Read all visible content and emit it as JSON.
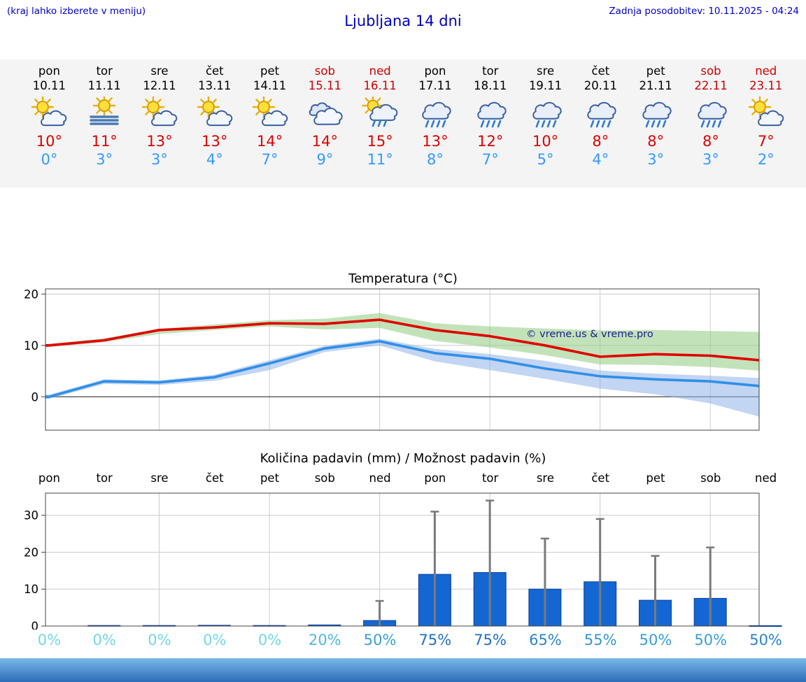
{
  "header": {
    "left_note": "(kraj lahko izberete v meniju)",
    "title": "Ljubljana 14 dni",
    "last_update": "Zadnja posodobitev: 10.11.2025 - 04:24"
  },
  "watermark": "© vreme.us & vreme.pro",
  "colors": {
    "header_blue": "#0000cc",
    "title_blue": "#0000bb",
    "weekend": "#cc0000",
    "weekday": "#000000",
    "temp_high": "#dd0000",
    "temp_low": "#3399ff",
    "strip_bg": "#f4f4f4",
    "grid": "#cccccc",
    "axis": "#444444",
    "bar_fill": "#1467d2",
    "bar_edge": "#0a3f9e",
    "whisker": "#7a7a7a",
    "watermark": "#1a1a8c",
    "footer_top": "#7ab8e8",
    "footer_bottom": "#2b6cb8"
  },
  "forecast": {
    "days": [
      {
        "name": "pon",
        "date": "10.11",
        "weekend": false,
        "icon": "partly-sunny",
        "high": "10°",
        "low": "0°"
      },
      {
        "name": "tor",
        "date": "11.11",
        "weekend": false,
        "icon": "fog",
        "high": "11°",
        "low": "3°"
      },
      {
        "name": "sre",
        "date": "12.11",
        "weekend": false,
        "icon": "partly-sunny",
        "high": "13°",
        "low": "3°"
      },
      {
        "name": "čet",
        "date": "13.11",
        "weekend": false,
        "icon": "partly-sunny",
        "high": "13°",
        "low": "4°"
      },
      {
        "name": "pet",
        "date": "14.11",
        "weekend": false,
        "icon": "partly-sunny",
        "high": "14°",
        "low": "7°"
      },
      {
        "name": "sob",
        "date": "15.11",
        "weekend": true,
        "icon": "cloudy",
        "high": "14°",
        "low": "9°"
      },
      {
        "name": "ned",
        "date": "16.11",
        "weekend": true,
        "icon": "rain-sun",
        "high": "15°",
        "low": "11°"
      },
      {
        "name": "pon",
        "date": "17.11",
        "weekend": false,
        "icon": "rain",
        "high": "13°",
        "low": "8°"
      },
      {
        "name": "tor",
        "date": "18.11",
        "weekend": false,
        "icon": "rain",
        "high": "12°",
        "low": "7°"
      },
      {
        "name": "sre",
        "date": "19.11",
        "weekend": false,
        "icon": "rain",
        "high": "10°",
        "low": "5°"
      },
      {
        "name": "čet",
        "date": "20.11",
        "weekend": false,
        "icon": "rain",
        "high": "8°",
        "low": "4°"
      },
      {
        "name": "pet",
        "date": "21.11",
        "weekend": false,
        "icon": "rain",
        "high": "8°",
        "low": "3°"
      },
      {
        "name": "sob",
        "date": "22.11",
        "weekend": true,
        "icon": "rain",
        "high": "8°",
        "low": "3°"
      },
      {
        "name": "ned",
        "date": "23.11",
        "weekend": true,
        "icon": "partly-sunny",
        "high": "7°",
        "low": "2°"
      }
    ]
  },
  "chart_data": [
    {
      "type": "line",
      "title": "Temperatura (°C)",
      "x_labels": [
        "10.11",
        "11.11",
        "12.11",
        "13.11",
        "14.11",
        "15.11",
        "16.11",
        "17.11",
        "18.11",
        "19.11",
        "20.11",
        "21.11",
        "22.11",
        "23.11"
      ],
      "series": [
        {
          "name": "max-temperature",
          "color": "#e00000",
          "values": [
            10,
            11,
            13,
            13.5,
            14.3,
            14.2,
            15,
            13,
            11.8,
            10,
            7.8,
            8.3,
            8,
            7
          ]
        },
        {
          "name": "min-temperature",
          "color": "#2f8fe8",
          "values": [
            0,
            3,
            2.8,
            3.8,
            6.5,
            9.4,
            10.8,
            8.5,
            7.4,
            5.5,
            4,
            3.4,
            3,
            2
          ]
        }
      ],
      "bands": [
        {
          "name": "max-temp-range",
          "color": "#8fcc7f",
          "upper": [
            10.3,
            11.4,
            13.2,
            14.1,
            14.9,
            15.2,
            16.3,
            14.3,
            13.7,
            13.3,
            12.9,
            13.0,
            12.8,
            12.6
          ],
          "lower": [
            9.7,
            10.6,
            12.2,
            13.0,
            13.7,
            13.1,
            13.4,
            10.9,
            9.6,
            8.1,
            6.3,
            6.2,
            5.8,
            5.0
          ]
        },
        {
          "name": "min-temp-range",
          "color": "#8fb3e8",
          "upper": [
            0.4,
            3.4,
            3.2,
            4.3,
            7.1,
            9.9,
            11.3,
            9.3,
            8.3,
            7.0,
            5.1,
            4.5,
            4.1,
            3.6
          ],
          "lower": [
            -0.4,
            2.5,
            2.3,
            3.1,
            5.2,
            8.7,
            10.0,
            6.9,
            5.2,
            3.5,
            1.6,
            0.5,
            -1.3,
            -4.2
          ]
        }
      ],
      "ylim": [
        -6.5,
        21
      ],
      "yticks": [
        0,
        10,
        20
      ],
      "grid": true,
      "legend": "none"
    },
    {
      "type": "bar",
      "title": "Količina padavin (mm) / Možnost padavin (%)",
      "categories": [
        "pon",
        "tor",
        "sre",
        "čet",
        "pet",
        "sob",
        "ned",
        "pon",
        "tor",
        "sre",
        "čet",
        "pet",
        "sob",
        "ned"
      ],
      "values": [
        0,
        0.15,
        0.15,
        0.2,
        0.15,
        0.3,
        1.5,
        14,
        14.5,
        10,
        12,
        7,
        7.5,
        0.1
      ],
      "whisker_max": [
        0,
        0,
        0,
        0,
        0,
        0,
        6.8,
        31,
        34,
        23.7,
        29,
        19,
        21.3,
        0
      ],
      "percent_labels": [
        "0%",
        "0%",
        "0%",
        "0%",
        "0%",
        "20%",
        "50%",
        "75%",
        "75%",
        "65%",
        "55%",
        "50%",
        "50%",
        "50%"
      ],
      "percent_colors": [
        "#74d6e4",
        "#74d6e4",
        "#74d6e4",
        "#74d6e4",
        "#74d6e4",
        "#4fb9dc",
        "#3a9ed6",
        "#2070bf",
        "#2070bf",
        "#2b85c8",
        "#3596d1",
        "#3a9ed6",
        "#3a9ed6",
        "#2b85c8"
      ],
      "ylim": [
        0,
        36
      ],
      "yticks": [
        0,
        10,
        20,
        30
      ],
      "grid": true,
      "legend": "none"
    }
  ]
}
